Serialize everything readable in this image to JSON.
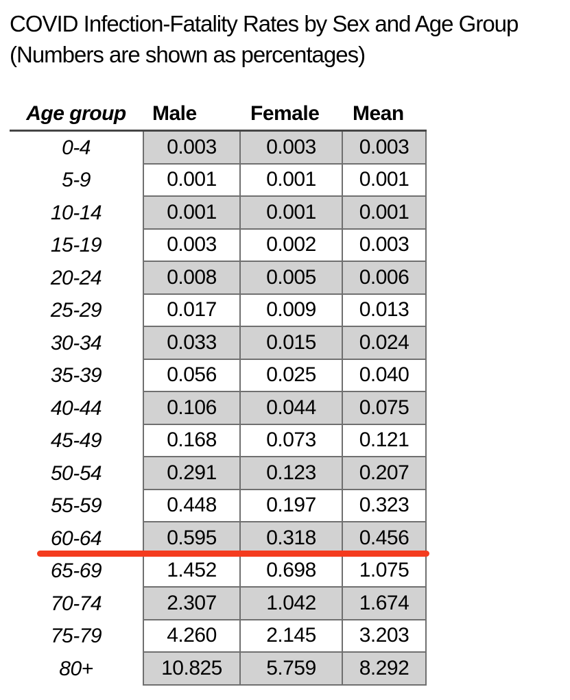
{
  "title": {
    "line1": "COVID Infection-Fatality Rates by Sex and Age Group",
    "line2": "(Numbers are shown as percentages)"
  },
  "table": {
    "headers": [
      "Age group",
      "Male",
      "Female",
      "Mean"
    ],
    "rows": [
      {
        "age": "0-4",
        "male": "0.003",
        "female": "0.003",
        "mean": "0.003",
        "shaded": true
      },
      {
        "age": "5-9",
        "male": "0.001",
        "female": "0.001",
        "mean": "0.001",
        "shaded": false
      },
      {
        "age": "10-14",
        "male": "0.001",
        "female": "0.001",
        "mean": "0.001",
        "shaded": true
      },
      {
        "age": "15-19",
        "male": "0.003",
        "female": "0.002",
        "mean": "0.003",
        "shaded": false
      },
      {
        "age": "20-24",
        "male": "0.008",
        "female": "0.005",
        "mean": "0.006",
        "shaded": true
      },
      {
        "age": "25-29",
        "male": "0.017",
        "female": "0.009",
        "mean": "0.013",
        "shaded": false
      },
      {
        "age": "30-34",
        "male": "0.033",
        "female": "0.015",
        "mean": "0.024",
        "shaded": true
      },
      {
        "age": "35-39",
        "male": "0.056",
        "female": "0.025",
        "mean": "0.040",
        "shaded": false
      },
      {
        "age": "40-44",
        "male": "0.106",
        "female": "0.044",
        "mean": "0.075",
        "shaded": true
      },
      {
        "age": "45-49",
        "male": "0.168",
        "female": "0.073",
        "mean": "0.121",
        "shaded": false
      },
      {
        "age": "50-54",
        "male": "0.291",
        "female": "0.123",
        "mean": "0.207",
        "shaded": true
      },
      {
        "age": "55-59",
        "male": "0.448",
        "female": "0.197",
        "mean": "0.323",
        "shaded": false
      },
      {
        "age": "60-64",
        "male": "0.595",
        "female": "0.318",
        "mean": "0.456",
        "shaded": true
      },
      {
        "age": "65-69",
        "male": "1.452",
        "female": "0.698",
        "mean": "1.075",
        "shaded": false
      },
      {
        "age": "70-74",
        "male": "2.307",
        "female": "1.042",
        "mean": "1.674",
        "shaded": true
      },
      {
        "age": "75-79",
        "male": "4.260",
        "female": "2.145",
        "mean": "3.203",
        "shaded": false
      },
      {
        "age": "80+",
        "male": "10.825",
        "female": "5.759",
        "mean": "8.292",
        "shaded": true
      }
    ],
    "divider_after_row": "60-64",
    "colors": {
      "shaded_fill": "#d2d2d2",
      "cell_border": "#6f6f6f",
      "header_rule": "#454545",
      "highlight_line": "#f43b1e"
    }
  },
  "chart_data": {
    "type": "table",
    "title": "COVID Infection-Fatality Rates by Sex and Age Group",
    "subtitle": "(Numbers are shown as percentages)",
    "categories": [
      "0-4",
      "5-9",
      "10-14",
      "15-19",
      "20-24",
      "25-29",
      "30-34",
      "35-39",
      "40-44",
      "45-49",
      "50-54",
      "55-59",
      "60-64",
      "65-69",
      "70-74",
      "75-79",
      "80+"
    ],
    "series": [
      {
        "name": "Male",
        "values": [
          0.003,
          0.001,
          0.001,
          0.003,
          0.008,
          0.017,
          0.033,
          0.056,
          0.106,
          0.168,
          0.291,
          0.448,
          0.595,
          1.452,
          2.307,
          4.26,
          10.825
        ]
      },
      {
        "name": "Female",
        "values": [
          0.003,
          0.001,
          0.001,
          0.002,
          0.005,
          0.009,
          0.015,
          0.025,
          0.044,
          0.073,
          0.123,
          0.197,
          0.318,
          0.698,
          1.042,
          2.145,
          5.759
        ]
      },
      {
        "name": "Mean",
        "values": [
          0.003,
          0.001,
          0.001,
          0.003,
          0.006,
          0.013,
          0.024,
          0.04,
          0.075,
          0.121,
          0.207,
          0.323,
          0.456,
          1.075,
          1.674,
          3.203,
          8.292
        ]
      }
    ],
    "annotations": [
      "Red horizontal divider line drawn below the 60-64 age group row"
    ],
    "layout": {
      "alternating_row_shading": true,
      "shaded_rows": "even indices starting at 0-4"
    }
  }
}
